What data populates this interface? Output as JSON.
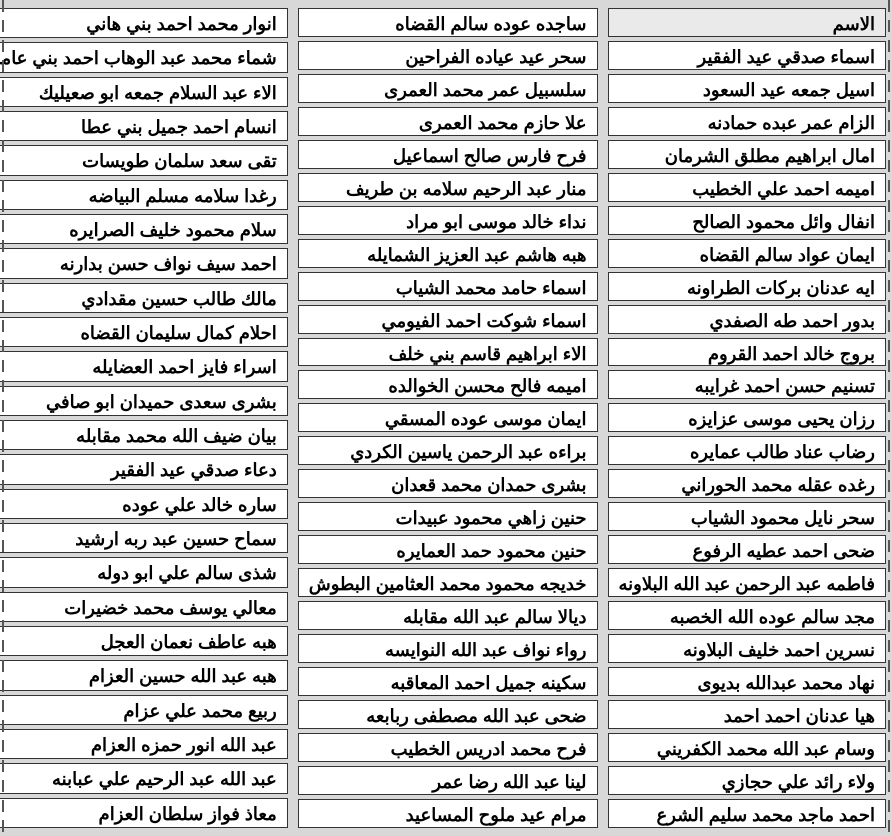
{
  "header": {
    "label": "الاسم"
  },
  "columns": {
    "c1": [
      "اسماء صدقي عيد الفقير",
      "اسيل جمعه عيد السعود",
      "الزام عمر عبده حمادنه",
      "امال ابراهيم مطلق الشرمان",
      "اميمه احمد علي الخطيب",
      "انفال وائل محمود الصالح",
      "ايمان عواد سالم القضاه",
      "ايه عدنان بركات الطراونه",
      "بدور احمد طه الصفدي",
      "بروج خالد احمد القروم",
      "تسنيم حسن احمد غرايبه",
      "رزان يحيى موسى عزايزه",
      "رضاب عناد طالب عمايره",
      "رغده عقله محمد الحوراني",
      "سحر نايل محمود الشياب",
      "ضحى احمد عطيه الرفوع",
      "فاطمه عبد الرحمن عبد الله البلاونه",
      "مجد سالم عوده الله الخصبه",
      "نسرين احمد خليف البلاونه",
      "نهاد محمد عبدالله بديوى",
      "هيا عدنان احمد احمد",
      "وسام عبد الله محمد الكفريني",
      "ولاء رائد علي حجازي",
      "احمد ماجد محمد سليم الشرع"
    ],
    "c2": [
      "ساجده عوده سالم القضاه",
      "سحر عيد عياده الفراحين",
      "سلسبيل عمر محمد العمرى",
      "علا حازم محمد العمرى",
      "فرح فارس صالح اسماعيل",
      "منار عبد الرحيم سلامه بن طريف",
      "نداء خالد موسى ابو مراد",
      "هبه هاشم عبد العزيز الشمايله",
      "اسماء حامد محمد الشياب",
      "اسماء شوكت احمد الفيومي",
      "الاء ابراهيم قاسم بني خلف",
      "اميمه فالح محسن الخوالده",
      "ايمان موسى عوده المسقي",
      "براءه عبد الرحمن ياسين الكردي",
      "بشرى حمدان محمد قعدان",
      "حنين زاهي محمود عبيدات",
      "حنين محمود حمد العمايره",
      "خديجه محمود محمد العثامين البطوش",
      "ديالا سالم عبد الله مقابله",
      "رواء نواف عبد الله النوايسه",
      "سكينه جميل احمد المعاقبه",
      "ضحى عبد الله مصطفى ربابعه",
      "فرح محمد ادريس الخطيب",
      "لينا عبد الله رضا عمر",
      "مرام عيد ملوح المساعيد"
    ],
    "c3": [
      "انوار محمد احمد بني هاني",
      "شماء محمد عبد الوهاب احمد بني عامر",
      "الاء عبد السلام جمعه ابو صعيليك",
      "انسام احمد جميل بني عطا",
      "تقى سعد سلمان طويسات",
      "رغدا سلامه مسلم البياضه",
      "سلام محمود خليف الصرايره",
      "احمد سيف نواف حسن بدارنه",
      "مالك طالب حسين مقدادي",
      "احلام كمال سليمان القضاه",
      "اسراء فايز احمد العضايله",
      "بشرى سعدى حميدان ابو صافي",
      "بيان ضيف الله محمد مقابله",
      "دعاء صدقي عيد الفقير",
      "ساره خالد علي عوده",
      "سماح حسين عبد ربه ارشيد",
      "شذى سالم علي ابو دوله",
      "معالي يوسف محمد خضيرات",
      "هبه عاطف نعمان العجل",
      "هبه عبد الله حسين العزام",
      "ربيع محمد علي عزام",
      "عبد الله انور حمزه العزام",
      "عبد الله عبد الرحيم علي عبابنه",
      "معاذ فواز سلطان العزام"
    ]
  }
}
